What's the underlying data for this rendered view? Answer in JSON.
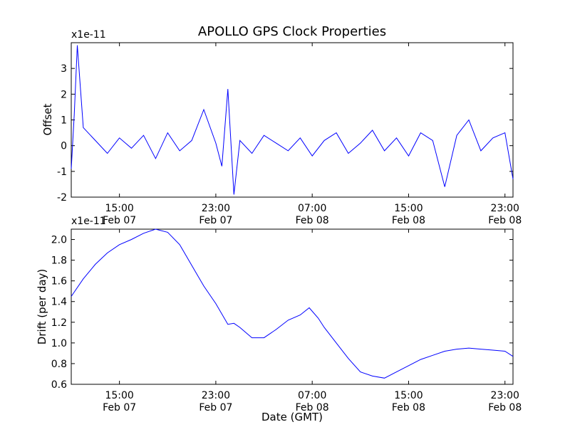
{
  "chart_data": [
    {
      "type": "line",
      "title": "APOLLO GPS Clock Properties",
      "ylabel": "Offset",
      "xlabel": "",
      "y_multiplier": "x1e-11",
      "ylim": [
        -2,
        4
      ],
      "yticks": [
        "-2",
        "-1",
        "0",
        "1",
        "2",
        "3"
      ],
      "xlim": [
        "2008-02-07 11:00",
        "2008-02-08 23:40"
      ],
      "xticks": [
        {
          "time": "15:00",
          "date": "Feb 07"
        },
        {
          "time": "23:00",
          "date": "Feb 07"
        },
        {
          "time": "07:00",
          "date": "Feb 08"
        },
        {
          "time": "15:00",
          "date": "Feb 08"
        },
        {
          "time": "23:00",
          "date": "Feb 08"
        }
      ],
      "grid": false,
      "series_color": "#0000ff",
      "x": [
        "2008-02-07 11:00",
        "2008-02-07 11:15",
        "2008-02-07 11:30",
        "2008-02-07 12:00",
        "2008-02-07 13:00",
        "2008-02-07 14:00",
        "2008-02-07 15:00",
        "2008-02-07 16:00",
        "2008-02-07 17:00",
        "2008-02-07 18:00",
        "2008-02-07 19:00",
        "2008-02-07 20:00",
        "2008-02-07 21:00",
        "2008-02-07 22:00",
        "2008-02-07 23:00",
        "2008-02-07 23:30",
        "2008-02-08 00:00",
        "2008-02-08 00:30",
        "2008-02-08 01:00",
        "2008-02-08 02:00",
        "2008-02-08 03:00",
        "2008-02-08 04:00",
        "2008-02-08 05:00",
        "2008-02-08 06:00",
        "2008-02-08 07:00",
        "2008-02-08 08:00",
        "2008-02-08 09:00",
        "2008-02-08 10:00",
        "2008-02-08 11:00",
        "2008-02-08 12:00",
        "2008-02-08 13:00",
        "2008-02-08 14:00",
        "2008-02-08 15:00",
        "2008-02-08 16:00",
        "2008-02-08 17:00",
        "2008-02-08 18:00",
        "2008-02-08 19:00",
        "2008-02-08 20:00",
        "2008-02-08 21:00",
        "2008-02-08 22:00",
        "2008-02-08 23:00",
        "2008-02-08 23:40"
      ],
      "values": [
        -0.9,
        1.2,
        3.9,
        0.7,
        0.2,
        -0.3,
        0.3,
        -0.1,
        0.4,
        -0.5,
        0.5,
        -0.2,
        0.2,
        1.4,
        0.1,
        -0.8,
        2.2,
        -1.9,
        0.2,
        -0.3,
        0.4,
        0.1,
        -0.2,
        0.3,
        -0.4,
        0.2,
        0.5,
        -0.3,
        0.1,
        0.6,
        -0.2,
        0.3,
        -0.4,
        0.5,
        0.2,
        -1.6,
        0.4,
        1.0,
        -0.2,
        0.3,
        0.5,
        -1.3
      ]
    },
    {
      "type": "line",
      "title": "",
      "ylabel": "Drift (per day)",
      "xlabel": "Date (GMT)",
      "y_multiplier": "x1e-11",
      "ylim": [
        0.6,
        2.1
      ],
      "yticks": [
        "0.6",
        "0.8",
        "1.0",
        "1.2",
        "1.4",
        "1.6",
        "1.8",
        "2.0"
      ],
      "xlim": [
        "2008-02-07 11:00",
        "2008-02-08 23:40"
      ],
      "xticks": [
        {
          "time": "15:00",
          "date": "Feb 07"
        },
        {
          "time": "23:00",
          "date": "Feb 07"
        },
        {
          "time": "07:00",
          "date": "Feb 08"
        },
        {
          "time": "15:00",
          "date": "Feb 08"
        },
        {
          "time": "23:00",
          "date": "Feb 08"
        }
      ],
      "grid": false,
      "series_color": "#0000ff",
      "x": [
        "2008-02-07 11:00",
        "2008-02-07 12:00",
        "2008-02-07 13:00",
        "2008-02-07 14:00",
        "2008-02-07 15:00",
        "2008-02-07 16:00",
        "2008-02-07 17:00",
        "2008-02-07 18:00",
        "2008-02-07 19:00",
        "2008-02-07 20:00",
        "2008-02-07 21:00",
        "2008-02-07 22:00",
        "2008-02-07 23:00",
        "2008-02-08 00:00",
        "2008-02-08 00:30",
        "2008-02-08 01:00",
        "2008-02-08 02:00",
        "2008-02-08 03:00",
        "2008-02-08 04:00",
        "2008-02-08 05:00",
        "2008-02-08 06:00",
        "2008-02-08 06:45",
        "2008-02-08 07:30",
        "2008-02-08 08:00",
        "2008-02-08 09:00",
        "2008-02-08 10:00",
        "2008-02-08 11:00",
        "2008-02-08 12:00",
        "2008-02-08 13:00",
        "2008-02-08 14:00",
        "2008-02-08 15:00",
        "2008-02-08 16:00",
        "2008-02-08 17:00",
        "2008-02-08 18:00",
        "2008-02-08 19:00",
        "2008-02-08 20:00",
        "2008-02-08 21:00",
        "2008-02-08 22:00",
        "2008-02-08 23:00",
        "2008-02-08 23:40"
      ],
      "values": [
        1.45,
        1.62,
        1.76,
        1.87,
        1.95,
        2.0,
        2.06,
        2.1,
        2.07,
        1.95,
        1.75,
        1.55,
        1.38,
        1.18,
        1.19,
        1.15,
        1.05,
        1.05,
        1.13,
        1.22,
        1.27,
        1.34,
        1.24,
        1.15,
        1.0,
        0.85,
        0.72,
        0.68,
        0.66,
        0.72,
        0.78,
        0.84,
        0.88,
        0.92,
        0.94,
        0.95,
        0.94,
        0.93,
        0.92,
        0.87
      ]
    }
  ]
}
